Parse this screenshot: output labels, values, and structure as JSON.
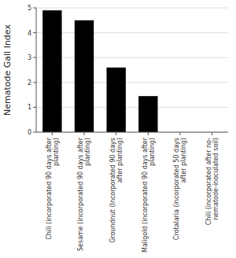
{
  "chart_data": {
    "type": "bar",
    "categories": [
      "Chili  (incorporated 90 days after\nplanting)",
      "Sesame  (incorporated 90 days after\nplanting)",
      "Groundnut  (Incorporated 90 days\nafter planting)",
      "Maligold  (incorporated 90 days after\nplanting)",
      "Crotalaria  (incorporated 50 days\nafter planting)",
      "Chili  (incorporated after no-\nnematode-inoculated soil)"
    ],
    "values": [
      4.9,
      4.5,
      2.6,
      1.45,
      0.0,
      0.0
    ],
    "color": "#000000",
    "ylabel": "Nematode Gall Index",
    "ylim": [
      0,
      5
    ],
    "yticks": [
      0,
      1,
      2,
      3,
      4,
      5
    ],
    "grid": true
  }
}
